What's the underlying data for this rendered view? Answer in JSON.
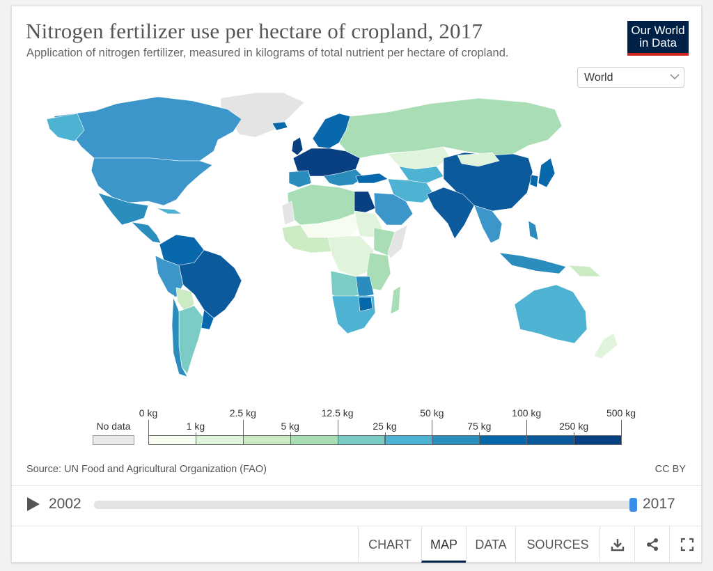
{
  "header": {
    "title": "Nitrogen fertilizer use per hectare of cropland, 2017",
    "subtitle": "Application of nitrogen fertilizer, measured in kilograms of total nutrient per hectare of cropland.",
    "logo_line1": "Our World",
    "logo_line2": "in Data"
  },
  "region_select": {
    "value": "World"
  },
  "legend": {
    "no_data_label": "No data",
    "bins": [
      {
        "color": "#f7fcf0",
        "low": "0 kg",
        "high": "1 kg"
      },
      {
        "color": "#e0f3db",
        "low": "1 kg",
        "high": "2.5 kg"
      },
      {
        "color": "#ccebc5",
        "low": "2.5 kg",
        "high": "5 kg"
      },
      {
        "color": "#a8ddb5",
        "low": "5 kg",
        "high": "12.5 kg"
      },
      {
        "color": "#7bccc4",
        "low": "12.5 kg",
        "high": "25 kg"
      },
      {
        "color": "#4eb3d3",
        "low": "25 kg",
        "high": "50 kg"
      },
      {
        "color": "#2b8cbe",
        "low": "50 kg",
        "high": "75 kg"
      },
      {
        "color": "#0868ac",
        "low": "75 kg",
        "high": "100 kg"
      },
      {
        "color": "#0a5a9c",
        "low": "100 kg",
        "high": "250 kg"
      },
      {
        "color": "#084081",
        "low": "250 kg",
        "high": "500 kg"
      }
    ],
    "labels_top": [
      "0 kg",
      "2.5 kg",
      "12.5 kg",
      "50 kg",
      "100 kg",
      "500 kg"
    ],
    "labels_bottom": [
      "1 kg",
      "5 kg",
      "25 kg",
      "75 kg",
      "250 kg"
    ]
  },
  "footer": {
    "source": "Source: UN Food and Agricultural Organization (FAO)",
    "license": "CC BY"
  },
  "timeline": {
    "start_year": "2002",
    "end_year": "2017",
    "progress": 1.0
  },
  "tabs": [
    {
      "label": "CHART",
      "active": false
    },
    {
      "label": "MAP",
      "active": true
    },
    {
      "label": "DATA",
      "active": false
    },
    {
      "label": "SOURCES",
      "active": false
    }
  ],
  "actions": {
    "download_icon": "download-icon",
    "share_icon": "share-icon",
    "fullscreen_icon": "fullscreen-icon"
  },
  "colors": {
    "accent": "#002147",
    "logo_red": "#ce261e",
    "slider_handle": "#3b8ee7",
    "no_data": "#e8e8e8"
  }
}
